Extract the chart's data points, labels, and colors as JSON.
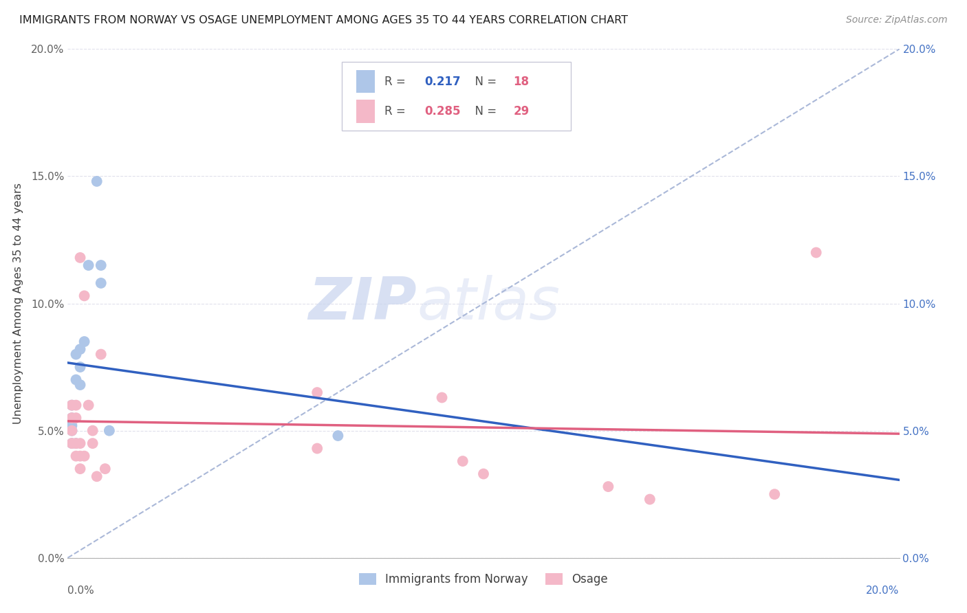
{
  "title": "IMMIGRANTS FROM NORWAY VS OSAGE UNEMPLOYMENT AMONG AGES 35 TO 44 YEARS CORRELATION CHART",
  "source": "Source: ZipAtlas.com",
  "xlabel_norway": "Immigrants from Norway",
  "xlabel_osage": "Osage",
  "ylabel": "Unemployment Among Ages 35 to 44 years",
  "norway_R": 0.217,
  "norway_N": 18,
  "osage_R": 0.285,
  "osage_N": 29,
  "xlim": [
    0.0,
    0.2
  ],
  "ylim": [
    0.0,
    0.2
  ],
  "norway_x": [
    0.001,
    0.002,
    0.001,
    0.001,
    0.001,
    0.001,
    0.002,
    0.002,
    0.003,
    0.003,
    0.003,
    0.004,
    0.005,
    0.007,
    0.008,
    0.008,
    0.01,
    0.065
  ],
  "norway_y": [
    0.045,
    0.045,
    0.05,
    0.052,
    0.055,
    0.06,
    0.07,
    0.08,
    0.068,
    0.075,
    0.082,
    0.085,
    0.115,
    0.148,
    0.115,
    0.108,
    0.05,
    0.048
  ],
  "osage_x": [
    0.001,
    0.001,
    0.001,
    0.001,
    0.002,
    0.002,
    0.002,
    0.002,
    0.003,
    0.003,
    0.003,
    0.003,
    0.004,
    0.004,
    0.005,
    0.006,
    0.006,
    0.007,
    0.008,
    0.009,
    0.06,
    0.06,
    0.09,
    0.095,
    0.1,
    0.13,
    0.14,
    0.17,
    0.18
  ],
  "osage_y": [
    0.045,
    0.05,
    0.055,
    0.06,
    0.04,
    0.045,
    0.055,
    0.06,
    0.035,
    0.04,
    0.045,
    0.118,
    0.04,
    0.103,
    0.06,
    0.045,
    0.05,
    0.032,
    0.08,
    0.035,
    0.065,
    0.043,
    0.063,
    0.038,
    0.033,
    0.028,
    0.023,
    0.025,
    0.12
  ],
  "norway_color": "#aec6e8",
  "osage_color": "#f4b8c8",
  "norway_line_color": "#3060c0",
  "osage_line_color": "#e06080",
  "diagonal_color": "#aab8d8",
  "diagonal_style": "--",
  "background_color": "#ffffff",
  "watermark_zip": "ZIP",
  "watermark_atlas": "atlas",
  "watermark_color": "#d8e0f0",
  "grid_color": "#e0e0ec",
  "yticks": [
    0.0,
    0.05,
    0.1,
    0.15,
    0.2
  ],
  "xtick_labels_show": false
}
